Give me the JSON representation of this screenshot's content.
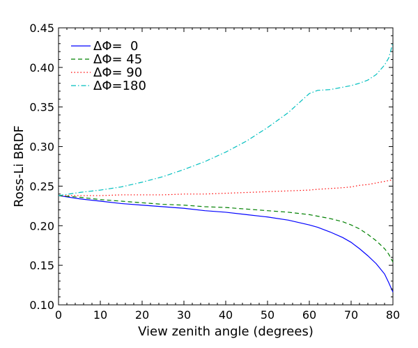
{
  "chart_data": {
    "type": "line",
    "title": "",
    "xlabel": "View zenith angle (degrees)",
    "ylabel": "Ross-Li BRDF",
    "xlim": [
      0,
      80
    ],
    "ylim": [
      0.1,
      0.45
    ],
    "xticks": [
      0,
      10,
      20,
      30,
      40,
      50,
      60,
      70,
      80
    ],
    "xtick_labels": [
      "0",
      "10",
      "20",
      "30",
      "40",
      "50",
      "60",
      "70",
      "80"
    ],
    "yticks": [
      0.1,
      0.15,
      0.2,
      0.25,
      0.3,
      0.35,
      0.4,
      0.45
    ],
    "ytick_labels": [
      "0.10",
      "0.15",
      "0.20",
      "0.25",
      "0.30",
      "0.35",
      "0.40",
      "0.45"
    ],
    "grid": false,
    "legend_position": "top-left",
    "x": [
      0,
      5,
      10,
      15,
      20,
      25,
      30,
      35,
      40,
      45,
      50,
      55,
      60,
      62,
      65,
      68,
      70,
      72,
      74,
      76,
      78,
      79,
      80
    ],
    "series": [
      {
        "name": "ΔΦ=  0",
        "color": "#0000ff",
        "dash": "solid",
        "values": [
          0.238,
          0.234,
          0.231,
          0.228,
          0.226,
          0.224,
          0.222,
          0.219,
          0.217,
          0.214,
          0.211,
          0.207,
          0.201,
          0.198,
          0.192,
          0.185,
          0.179,
          0.171,
          0.162,
          0.152,
          0.139,
          0.128,
          0.116
        ]
      },
      {
        "name": "ΔΦ= 45",
        "color": "#008000",
        "dash": "dashed",
        "values": [
          0.238,
          0.236,
          0.233,
          0.231,
          0.229,
          0.227,
          0.226,
          0.224,
          0.223,
          0.221,
          0.219,
          0.217,
          0.214,
          0.212,
          0.209,
          0.205,
          0.201,
          0.196,
          0.189,
          0.181,
          0.171,
          0.164,
          0.154
        ]
      },
      {
        "name": "ΔΦ= 90",
        "color": "#ff0000",
        "dash": "dotted",
        "values": [
          0.238,
          0.238,
          0.238,
          0.239,
          0.239,
          0.239,
          0.24,
          0.24,
          0.241,
          0.242,
          0.243,
          0.244,
          0.245,
          0.246,
          0.247,
          0.248,
          0.249,
          0.251,
          0.252,
          0.254,
          0.256,
          0.257,
          0.258
        ]
      },
      {
        "name": "ΔΦ=180",
        "color": "#00bfbf",
        "dash": "dashdot",
        "values": [
          0.238,
          0.242,
          0.245,
          0.249,
          0.255,
          0.262,
          0.271,
          0.281,
          0.293,
          0.307,
          0.324,
          0.343,
          0.367,
          0.371,
          0.372,
          0.375,
          0.377,
          0.38,
          0.384,
          0.391,
          0.403,
          0.412,
          0.431
        ]
      }
    ]
  }
}
